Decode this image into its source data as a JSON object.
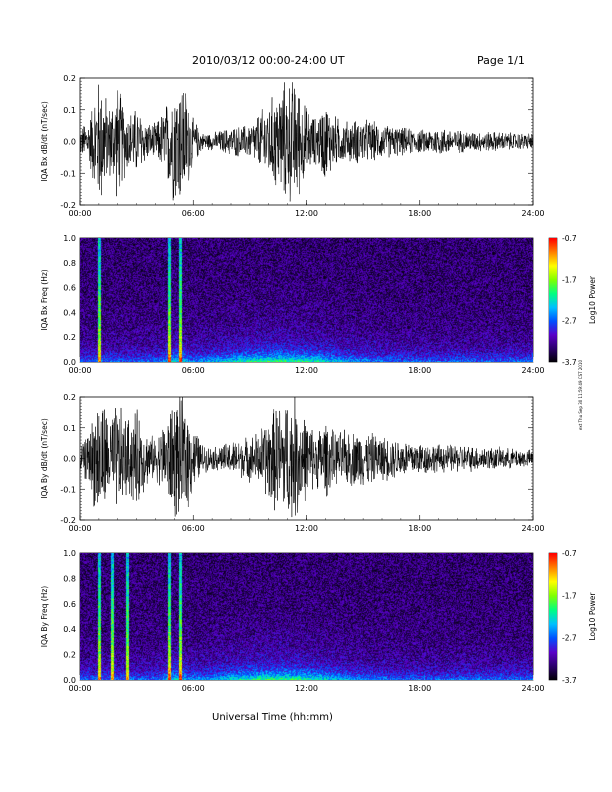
{
  "header": {
    "title": "2010/03/12  00:00-24:00 UT",
    "page": "Page 1/1"
  },
  "side_stamp": "ext Thu Sep 30 11:59:49 CST 2010",
  "footer": {
    "xlabel": "Universal Time (hh:mm)"
  },
  "colors": {
    "trace": "#000000",
    "spectrogram_background": "#000000",
    "colorbar": [
      "#000000",
      "#2a006a",
      "#5a00c8",
      "#0050ff",
      "#00c0ff",
      "#00ff80",
      "#80ff00",
      "#ffff00",
      "#ff8000",
      "#ff0000"
    ]
  },
  "chart_data": [
    {
      "type": "line",
      "ylabel": "IQA Bx dB/dt (nT/sec)",
      "ylim": [
        -0.2,
        0.2
      ],
      "yticks": [
        "0.2",
        "0.1",
        "0.0",
        "-0.1",
        "-0.2"
      ],
      "xticks": [
        "00:00",
        "06:00",
        "12:00",
        "18:00",
        "24:00"
      ],
      "xlim_hours": [
        0,
        24
      ],
      "envelope": {
        "x_hours": [
          0,
          0.5,
          0.9,
          1.2,
          1.5,
          2.0,
          2.5,
          3.0,
          3.5,
          4.0,
          4.5,
          5.0,
          5.5,
          6.0,
          6.5,
          7.0,
          8.0,
          9.0,
          9.5,
          10.0,
          10.5,
          11.0,
          11.5,
          12.0,
          12.5,
          13.0,
          13.5,
          14.0,
          15.0,
          16.0,
          17.0,
          18.0,
          19.0,
          20.0,
          21.0,
          22.0,
          23.0,
          24.0
        ],
        "amplitude": [
          0.05,
          0.08,
          0.22,
          0.22,
          0.12,
          0.2,
          0.1,
          0.12,
          0.07,
          0.06,
          0.12,
          0.22,
          0.22,
          0.08,
          0.03,
          0.03,
          0.05,
          0.06,
          0.1,
          0.14,
          0.18,
          0.22,
          0.21,
          0.12,
          0.08,
          0.14,
          0.09,
          0.07,
          0.08,
          0.06,
          0.05,
          0.04,
          0.05,
          0.04,
          0.035,
          0.035,
          0.03,
          0.03
        ]
      }
    },
    {
      "type": "heatmap",
      "ylabel": "IQA Bx Freq (Hz)",
      "ylim": [
        0.0,
        1.0
      ],
      "yticks": [
        "1.0",
        "0.8",
        "0.6",
        "0.4",
        "0.2",
        "0.0"
      ],
      "xticks": [
        "00:00",
        "06:00",
        "12:00",
        "18:00",
        "24:00"
      ],
      "xlim_hours": [
        0,
        24
      ],
      "colorbar": {
        "label": "Log10 Power",
        "range": [
          -3.7,
          -0.7
        ],
        "ticks": [
          "-0.7",
          "-1.7",
          "-2.7",
          "-3.7"
        ]
      },
      "bright_bands_hours": [
        1.0,
        4.7,
        5.3
      ]
    },
    {
      "type": "line",
      "ylabel": "IQA By dB/dt (nT/sec)",
      "ylim": [
        -0.2,
        0.2
      ],
      "yticks": [
        "0.2",
        "0.1",
        "0.0",
        "-0.1",
        "-0.2"
      ],
      "xticks": [
        "00:00",
        "06:00",
        "12:00",
        "18:00",
        "24:00"
      ],
      "xlim_hours": [
        0,
        24
      ],
      "envelope": {
        "x_hours": [
          0,
          0.5,
          0.9,
          1.2,
          1.5,
          2.0,
          2.5,
          3.0,
          3.5,
          4.0,
          4.5,
          5.0,
          5.5,
          6.0,
          6.5,
          7.0,
          8.0,
          9.0,
          9.5,
          10.0,
          10.5,
          11.0,
          11.5,
          12.0,
          12.5,
          13.0,
          13.5,
          14.0,
          15.0,
          16.0,
          17.0,
          18.0,
          19.0,
          20.0,
          21.0,
          22.0,
          23.0,
          24.0
        ],
        "amplitude": [
          0.04,
          0.1,
          0.22,
          0.22,
          0.15,
          0.2,
          0.14,
          0.18,
          0.1,
          0.07,
          0.14,
          0.22,
          0.22,
          0.12,
          0.05,
          0.04,
          0.06,
          0.08,
          0.1,
          0.16,
          0.2,
          0.22,
          0.22,
          0.14,
          0.1,
          0.14,
          0.09,
          0.1,
          0.1,
          0.08,
          0.07,
          0.06,
          0.05,
          0.05,
          0.045,
          0.04,
          0.035,
          0.03
        ]
      }
    },
    {
      "type": "heatmap",
      "ylabel": "IQA By Freq (Hz)",
      "ylim": [
        0.0,
        1.0
      ],
      "yticks": [
        "1.0",
        "0.8",
        "0.6",
        "0.4",
        "0.2",
        "0.0"
      ],
      "xticks": [
        "00:00",
        "06:00",
        "12:00",
        "18:00",
        "24:00"
      ],
      "xlim_hours": [
        0,
        24
      ],
      "colorbar": {
        "label": "Log10 Power",
        "range": [
          -3.7,
          -0.7
        ],
        "ticks": [
          "-0.7",
          "-1.7",
          "-2.7",
          "-3.7"
        ]
      },
      "bright_bands_hours": [
        1.0,
        1.7,
        2.5,
        4.7,
        5.3
      ]
    }
  ]
}
